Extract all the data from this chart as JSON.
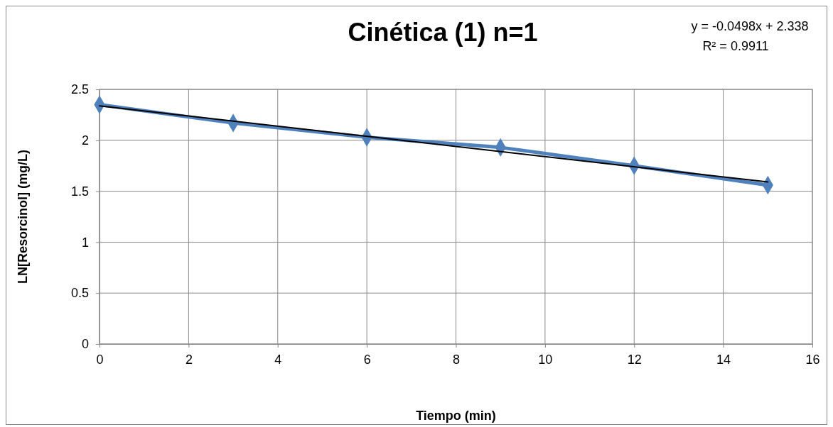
{
  "chart_data": {
    "type": "line",
    "title": "Cinética (1) n=1",
    "xlabel": "Tiempo (min)",
    "ylabel": "LN[Resorcinol] (mg/L)",
    "x": [
      0,
      3,
      6,
      9,
      12,
      15
    ],
    "series": [
      {
        "color": "#4f81bd",
        "values": [
          2.35,
          2.17,
          2.03,
          1.93,
          1.75,
          1.56
        ]
      },
      {
        "type": "line",
        "color": "#000000",
        "x": [
          0,
          15
        ],
        "values": [
          2.338,
          1.591
        ],
        "marker": "none"
      }
    ],
    "xlim": [
      0,
      16
    ],
    "xticks": [
      0,
      2,
      4,
      6,
      8,
      10,
      12,
      14,
      16
    ],
    "ylim": [
      0,
      2.5
    ],
    "yticks": [
      0,
      0.5,
      1,
      1.5,
      2,
      2.5
    ],
    "grid": true,
    "marker": "diamond",
    "line_style": "solid",
    "annotations": [
      "y = -0.0498x + 2.338",
      "R² = 0.9911"
    ]
  }
}
